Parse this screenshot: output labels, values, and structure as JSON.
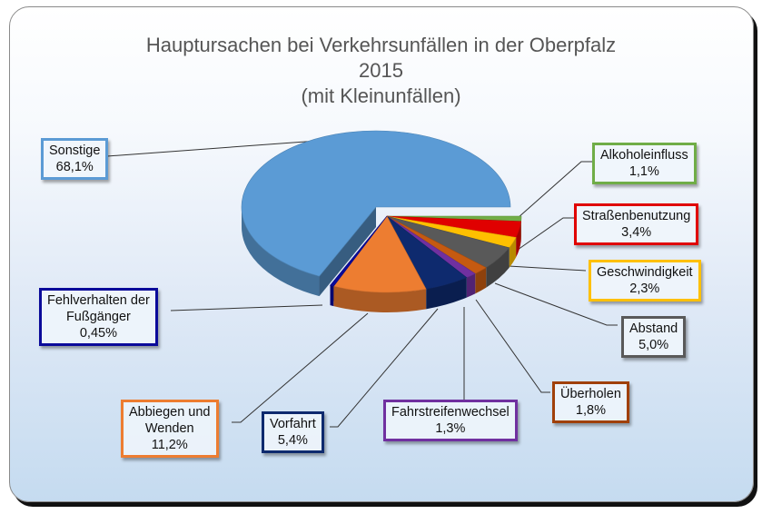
{
  "chart_data": {
    "type": "pie",
    "style": "3d-exploded",
    "title": "Hauptursachen bei Verkehrsunfällen in der Oberpfalz",
    "subtitle_year": "2015",
    "subtitle_note": "(mit Kleinunfällen)",
    "legend": "none (data labels with leader lines)",
    "slices": [
      {
        "key": "sonstige",
        "label": "Sonstige",
        "value": 68.1,
        "display": "68,1%",
        "color": "#5b9bd5",
        "border": "#5b9bd5"
      },
      {
        "key": "alkohol",
        "label": "Alkoholeinfluss",
        "value": 1.1,
        "display": "1,1%",
        "color": "#70ad47",
        "border": "#70ad47"
      },
      {
        "key": "strasse",
        "label": "Straßenbenutzung",
        "value": 3.4,
        "display": "3,4%",
        "color": "#e00000",
        "border": "#e00000"
      },
      {
        "key": "geschw",
        "label": "Geschwindigkeit",
        "value": 2.3,
        "display": "2,3%",
        "color": "#ffc000",
        "border": "#ffc000"
      },
      {
        "key": "abstand",
        "label": "Abstand",
        "value": 5.0,
        "display": "5,0%",
        "color": "#595959",
        "border": "#595959"
      },
      {
        "key": "ueberholen",
        "label": "Überholen",
        "value": 1.8,
        "display": "1,8%",
        "color": "#c55a11",
        "border": "#a0400a"
      },
      {
        "key": "fahrstreifen",
        "label": "Fahrstreifenwechsel",
        "value": 1.3,
        "display": "1,3%",
        "color": "#7030a0",
        "border": "#7030a0"
      },
      {
        "key": "vorfahrt",
        "label": "Vorfahrt",
        "value": 5.4,
        "display": "5,4%",
        "color": "#0e2a6e",
        "border": "#0e2a6e"
      },
      {
        "key": "abbiegen",
        "label": "Abbiegen und Wenden",
        "value": 11.2,
        "display": "11,2%",
        "color": "#ed7d31",
        "border": "#ed7d31"
      },
      {
        "key": "fussgaenger",
        "label": "Fehlverhalten der Fußgänger",
        "value": 0.45,
        "display": "0,45%",
        "color": "#0a0a9a",
        "border": "#0a0a9a"
      }
    ]
  },
  "labels": {
    "sonstige": {
      "line1": "Sonstige",
      "line2": "68,1%"
    },
    "alkohol": {
      "line1": "Alkoholeinfluss",
      "line2": "1,1%"
    },
    "strasse": {
      "line1": "Straßenbenutzung",
      "line2": "3,4%"
    },
    "geschw": {
      "line1": "Geschwindigkeit",
      "line2": "2,3%"
    },
    "abstand": {
      "line1": "Abstand",
      "line2": "5,0%"
    },
    "ueberholen": {
      "line1": "Überholen",
      "line2": "1,8%"
    },
    "fahrstreifen": {
      "line1": "Fahrstreifenwechsel",
      "line2": "1,3%"
    },
    "vorfahrt": {
      "line1": "Vorfahrt",
      "line2": "5,4%"
    },
    "abbiegen": {
      "line1": "Abbiegen und",
      "line2": "Wenden",
      "line3": "11,2%"
    },
    "fussgaenger": {
      "line1": "Fehlverhalten der",
      "line2": "Fußgänger",
      "line3": "0,45%"
    }
  }
}
